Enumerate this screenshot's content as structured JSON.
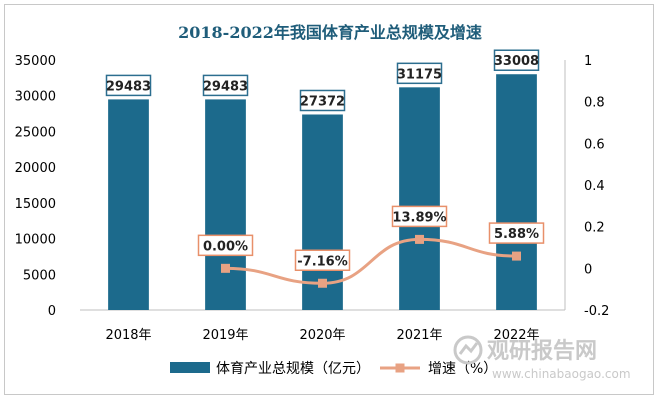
{
  "chart_data": {
    "type": "bar",
    "title": "2018-2022年我国体育产业总规模及增速",
    "categories": [
      "2018年",
      "2019年",
      "2020年",
      "2021年",
      "2022年"
    ],
    "series": [
      {
        "name": "体育产业总规模（亿元）",
        "type": "bar",
        "axis": "left",
        "values": [
          29483,
          29483,
          27372,
          31175,
          33008
        ],
        "labels": [
          "29483",
          "29483",
          "27372",
          "31175",
          "33008"
        ]
      },
      {
        "name": "增速（%）",
        "type": "line",
        "axis": "right",
        "values": [
          null,
          0.0,
          -0.0716,
          0.1389,
          0.0588
        ],
        "labels": [
          "",
          "0.00%",
          "-7.16%",
          "13.89%",
          "5.88%"
        ]
      }
    ],
    "y_left": {
      "min": 0,
      "max": 35000,
      "ticks": [
        "0",
        "5000",
        "10000",
        "15000",
        "20000",
        "25000",
        "30000",
        "35000"
      ]
    },
    "y_right": {
      "min": -0.2,
      "max": 1,
      "ticks": [
        "-0.2",
        "0",
        "0.2",
        "0.4",
        "0.6",
        "0.8",
        "1"
      ]
    },
    "legend_position": "bottom",
    "colors": {
      "bar": "#1c6a8c",
      "line": "#e8a283",
      "title": "#1f5d7a",
      "label_border": "#2c6e8f",
      "line_label_border": "#e8906a"
    }
  },
  "watermark": {
    "brand": "观研报告网",
    "url": "www.chinabaogao.com"
  }
}
